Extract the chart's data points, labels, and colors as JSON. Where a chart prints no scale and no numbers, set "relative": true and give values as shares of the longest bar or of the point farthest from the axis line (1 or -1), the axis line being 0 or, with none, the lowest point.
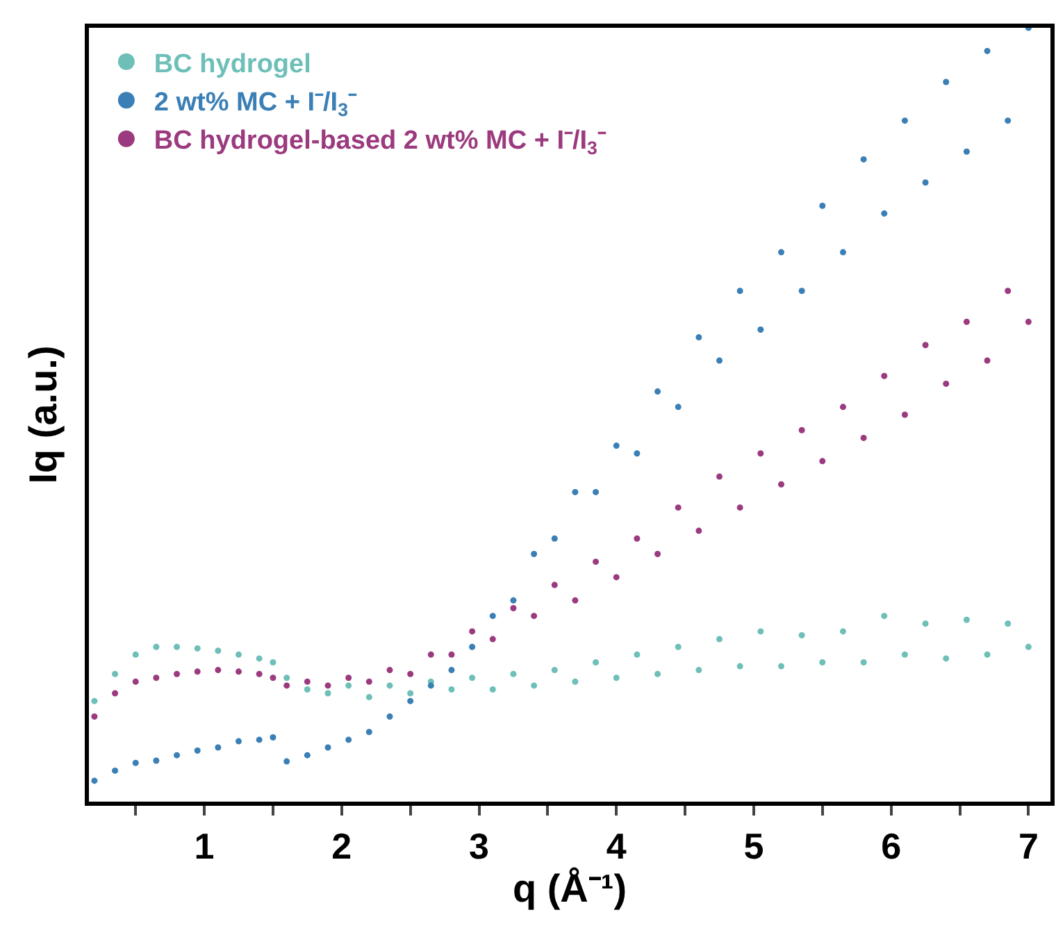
{
  "chart_data": {
    "type": "scatter",
    "xlabel": "q (Å⁻¹)",
    "ylabel": "Iq (a.u.)",
    "relative": true,
    "marker": "circle",
    "legend": "top left",
    "grid": false,
    "xlim": [
      0.16,
      7.16
    ],
    "xticks": [
      {
        "value": 0.5,
        "label": null
      },
      1,
      {
        "value": 1.5,
        "label": null
      },
      2,
      {
        "value": 2.5,
        "label": null
      },
      3,
      {
        "value": 3.5,
        "label": null
      },
      4,
      {
        "value": 4.5,
        "label": null
      },
      5,
      {
        "value": 5.5,
        "label": null
      },
      6,
      {
        "value": 6.5,
        "label": null
      },
      7
    ],
    "x": [
      0.2,
      0.35,
      0.5,
      0.65,
      0.8,
      0.95,
      1.1,
      1.25,
      1.4,
      1.5,
      1.6,
      1.75,
      1.9,
      2.05,
      2.2,
      2.35,
      2.5,
      2.65,
      2.8,
      2.95,
      3.1,
      3.25,
      3.4,
      3.55,
      3.7,
      3.85,
      4.0,
      4.15,
      4.3,
      4.45,
      4.6,
      4.75,
      4.9,
      5.05,
      5.2,
      5.35,
      5.5,
      5.65,
      5.8,
      5.95,
      6.1,
      6.25,
      6.4,
      6.55,
      6.7,
      6.85,
      7.0
    ],
    "series": [
      {
        "name": "BC hydrogel",
        "color": "#6dbfb8",
        "values": [
          0.13,
          0.165,
          0.19,
          0.2,
          0.2,
          0.198,
          0.195,
          0.19,
          0.185,
          0.18,
          0.16,
          0.145,
          0.14,
          0.15,
          0.135,
          0.15,
          0.14,
          0.155,
          0.145,
          0.16,
          0.145,
          0.165,
          0.15,
          0.17,
          0.155,
          0.18,
          0.16,
          0.19,
          0.165,
          0.2,
          0.17,
          0.21,
          0.175,
          0.22,
          0.175,
          0.215,
          0.18,
          0.22,
          0.18,
          0.24,
          0.19,
          0.23,
          0.185,
          0.235,
          0.19,
          0.23,
          0.2
        ]
      },
      {
        "name": "2 wt% MC + I⁻/I$_{3}$⁻",
        "color": "#3a7fb5",
        "values": [
          0.027,
          0.04,
          0.05,
          0.053,
          0.06,
          0.066,
          0.07,
          0.078,
          0.08,
          0.083,
          0.052,
          0.06,
          0.07,
          0.08,
          0.09,
          0.11,
          0.13,
          0.15,
          0.17,
          0.2,
          0.24,
          0.26,
          0.32,
          0.34,
          0.4,
          0.4,
          0.46,
          0.45,
          0.53,
          0.51,
          0.6,
          0.57,
          0.66,
          0.61,
          0.71,
          0.66,
          0.77,
          0.71,
          0.83,
          0.76,
          0.88,
          0.8,
          0.93,
          0.84,
          0.97,
          0.88,
          1.0
        ]
      },
      {
        "name": "BC hydrogel-based 2 wt% MC + I⁻/I$_{3}$⁻",
        "color": "#9b3a7e",
        "values": [
          0.11,
          0.14,
          0.155,
          0.16,
          0.165,
          0.168,
          0.17,
          0.168,
          0.165,
          0.16,
          0.15,
          0.155,
          0.15,
          0.16,
          0.155,
          0.17,
          0.165,
          0.19,
          0.19,
          0.22,
          0.21,
          0.25,
          0.24,
          0.28,
          0.26,
          0.31,
          0.29,
          0.34,
          0.32,
          0.38,
          0.35,
          0.42,
          0.38,
          0.45,
          0.41,
          0.48,
          0.44,
          0.51,
          0.47,
          0.55,
          0.5,
          0.59,
          0.54,
          0.62,
          0.57,
          0.66,
          0.62
        ]
      }
    ]
  }
}
